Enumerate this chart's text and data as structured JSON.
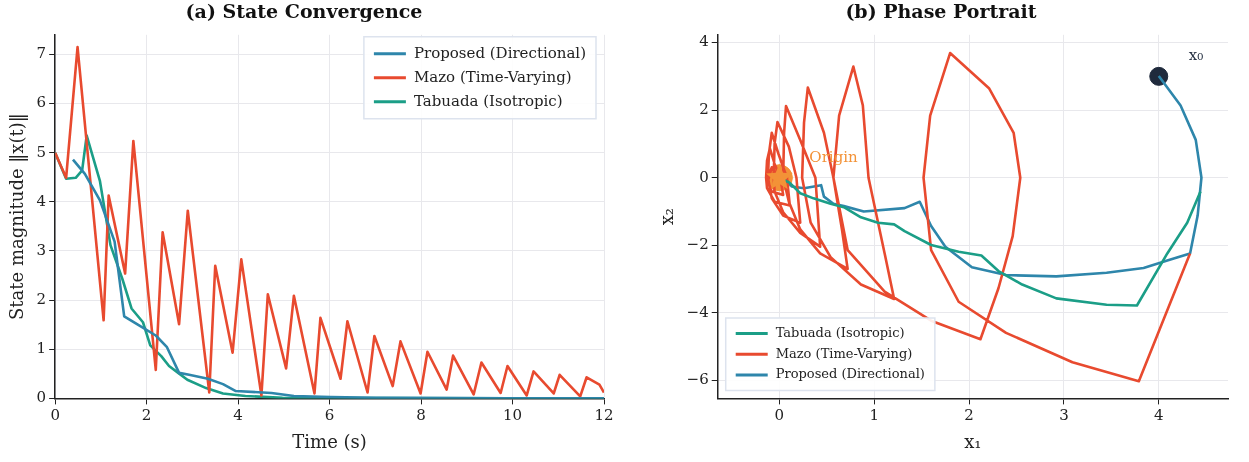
{
  "chart_data": [
    {
      "type": "line",
      "title": "(a) State Convergence",
      "xlabel": "Time (s)",
      "ylabel": "State magnitude ‖x(t)‖",
      "xlim": [
        0,
        12
      ],
      "xticks": [
        0,
        2,
        4,
        6,
        8,
        10,
        12
      ],
      "ylim": [
        0,
        7.4
      ],
      "yticks": [
        0,
        1,
        2,
        3,
        4,
        5,
        6,
        7
      ],
      "grid": true,
      "legend": "top right",
      "series": [
        {
          "name": "Proposed (Directional)",
          "color": "#2e86ab",
          "x": [
            0.39,
            0.65,
            0.98,
            1.3,
            1.51,
            1.79,
            2.2,
            2.44,
            2.71,
            2.93,
            3.34,
            3.67,
            3.95,
            4.73,
            5.22,
            6.03,
            7.0,
            12
          ],
          "values": [
            4.86,
            4.57,
            4.03,
            3.19,
            1.67,
            1.51,
            1.28,
            1.05,
            0.52,
            0.48,
            0.4,
            0.29,
            0.15,
            0.11,
            0.05,
            0.03,
            0.01,
            0
          ]
        },
        {
          "name": "Mazo (Time-Varying)",
          "color": "#e84a2f",
          "x": [
            0,
            0.24,
            0.49,
            1.06,
            1.17,
            1.53,
            1.71,
            2.2,
            2.35,
            2.71,
            2.9,
            3.37,
            3.5,
            3.88,
            4.07,
            4.51,
            4.65,
            5.05,
            5.22,
            5.67,
            5.8,
            6.24,
            6.39,
            6.83,
            6.98,
            7.38,
            7.55,
            7.99,
            8.14,
            8.56,
            8.7,
            9.15,
            9.32,
            9.74,
            9.89,
            10.31,
            10.46,
            10.9,
            11.03,
            11.48,
            11.62,
            11.9,
            12
          ],
          "values": [
            5.0,
            4.49,
            7.15,
            1.59,
            4.13,
            2.54,
            5.24,
            0.58,
            3.38,
            1.51,
            3.82,
            0.12,
            2.7,
            0.93,
            2.83,
            0.06,
            2.12,
            0.61,
            2.09,
            0.1,
            1.64,
            0.4,
            1.57,
            0.12,
            1.27,
            0.25,
            1.16,
            0.1,
            0.95,
            0.18,
            0.87,
            0.08,
            0.73,
            0.11,
            0.66,
            0.06,
            0.55,
            0.1,
            0.48,
            0.04,
            0.43,
            0.28,
            0.12
          ]
        },
        {
          "name": "Tabuada (Isotropic)",
          "color": "#1b9e87",
          "x": [
            0,
            0.24,
            0.45,
            0.59,
            0.69,
            0.98,
            1.21,
            1.47,
            1.67,
            1.92,
            2.08,
            2.32,
            2.49,
            2.69,
            2.89,
            3.3,
            3.67,
            4.16,
            4.97,
            12
          ],
          "values": [
            5.0,
            4.47,
            4.49,
            4.64,
            5.35,
            4.42,
            3.12,
            2.43,
            1.83,
            1.55,
            1.08,
            0.86,
            0.66,
            0.52,
            0.38,
            0.21,
            0.1,
            0.05,
            0.01,
            0
          ]
        }
      ]
    },
    {
      "type": "line",
      "title": "(b) Phase Portrait",
      "xlabel": "x₁",
      "ylabel": "x₂",
      "xlim": [
        -0.65,
        4.73
      ],
      "xticks": [
        0,
        1,
        2,
        3,
        4
      ],
      "ylim": [
        -6.53,
        4.23
      ],
      "yticks": [
        {
          "value": -6,
          "label": "−6"
        },
        {
          "value": -4,
          "label": "−4"
        },
        {
          "value": -2,
          "label": "−2"
        },
        0,
        2,
        4
      ],
      "grid": true,
      "legend": "bottom left",
      "annotations": [
        {
          "text": "Origin",
          "x": 0,
          "y": 0
        },
        {
          "text": "x₀",
          "x": 4,
          "y": 3
        }
      ],
      "series": [
        {
          "name": "Tabuada (Isotropic)",
          "color": "#1b9e87",
          "x": [
            4.44,
            4.3,
            4.09,
            3.77,
            3.45,
            2.92,
            2.56,
            2.31,
            2.13,
            1.89,
            1.6,
            1.32,
            1.21,
            1.04,
            0.86,
            0.68,
            0.54,
            0.36,
            0.22,
            0.11,
            0
          ],
          "values": [
            -0.41,
            -1.33,
            -2.24,
            -3.78,
            -3.76,
            -3.57,
            -3.16,
            -2.76,
            -2.3,
            -2.19,
            -1.99,
            -1.58,
            -1.38,
            -1.33,
            -1.17,
            -0.87,
            -0.77,
            -0.61,
            -0.46,
            -0.15,
            0
          ]
        },
        {
          "name": "Mazo (Time-Varying)",
          "color": "#e84a2f",
          "x": [
            4.33,
            3.79,
            3.09,
            2.39,
            1.89,
            1.6,
            1.52,
            1.59,
            1.8,
            2.21,
            2.47,
            2.54,
            2.46,
            2.31,
            2.12,
            1.6,
            1.11,
            0.72,
            0.57,
            0.63,
            0.78,
            0.88,
            0.94,
            1.11,
            1.21,
            0.86,
            0.54,
            0.33,
            0.24,
            0.26,
            0.3,
            0.47,
            0.57,
            0.66,
            0.72,
            0.43,
            0.22,
            0.1,
            0.04,
            0.05,
            0.07,
            0.22,
            0.38,
            0.43,
            0.22,
            0.04,
            -0.05,
            -0.06,
            -0.05,
            -0.02,
            0.1,
            0.18,
            0.22,
            0.04,
            -0.08,
            -0.12,
            -0.11,
            -0.08,
            -0.01,
            0.08,
            0.11,
            -0.05,
            -0.13,
            -0.14,
            -0.13,
            -0.1,
            -0.05,
            0.01,
            0.04,
            -0.08,
            -0.12,
            -0.08,
            0
          ],
          "values": [
            -2.24,
            -6.02,
            -5.46,
            -4.59,
            -3.67,
            -2.14,
            0,
            1.84,
            3.69,
            2.65,
            1.33,
            0,
            -1.73,
            -3.27,
            -4.78,
            -4.23,
            -3.37,
            -2.14,
            0,
            1.84,
            3.29,
            2.14,
            0,
            -2.24,
            -3.59,
            -3.16,
            -2.35,
            -1.33,
            0,
            1.63,
            2.67,
            1.33,
            0,
            -1.53,
            -2.7,
            -2.24,
            -1.53,
            -0.71,
            0,
            1.33,
            2.12,
            1.12,
            0,
            -2.04,
            -1.63,
            -1.02,
            -0.41,
            0,
            1.02,
            1.65,
            0.92,
            0,
            -1.33,
            -1.12,
            -0.61,
            0,
            0.71,
            1.33,
            0.71,
            0,
            -0.82,
            -0.71,
            -0.31,
            0,
            0.51,
            0.87,
            0.41,
            0,
            -0.51,
            -0.41,
            -0.1,
            0.31,
            0
          ]
        },
        {
          "name": "Proposed (Directional)",
          "color": "#2e86ab",
          "x": [
            4.0,
            4.23,
            4.39,
            4.45,
            4.41,
            4.33,
            4.09,
            3.84,
            3.45,
            2.92,
            2.39,
            2.03,
            1.75,
            1.6,
            1.48,
            1.32,
            0.89,
            0.68,
            0.57,
            0.47,
            0.44,
            0.26,
            0.13,
            0.08,
            0.04,
            0
          ],
          "values": [
            3.01,
            2.14,
            1.12,
            0,
            -1.12,
            -2.24,
            -2.45,
            -2.67,
            -2.81,
            -2.92,
            -2.88,
            -2.65,
            -2.04,
            -1.43,
            -0.71,
            -0.9,
            -1.0,
            -0.84,
            -0.77,
            -0.56,
            -0.22,
            -0.31,
            -0.26,
            -0.08,
            -0.05,
            0
          ]
        },
        {
          "type": "scatter",
          "marker": "star",
          "color": "#f39237",
          "x": [
            0
          ],
          "values": [
            0
          ]
        },
        {
          "type": "scatter",
          "marker": "circle",
          "color": "#1f2a3c",
          "x": [
            4
          ],
          "values": [
            3
          ]
        }
      ]
    }
  ]
}
